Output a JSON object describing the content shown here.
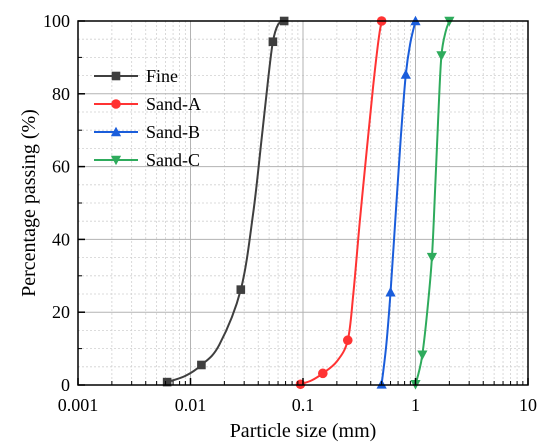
{
  "chart_data": {
    "type": "line",
    "title": "",
    "xlabel": "Particle size (mm)",
    "ylabel": "Percentage passing (%)",
    "xscale": "log",
    "xlim": [
      0.001,
      10
    ],
    "ylim": [
      0,
      100
    ],
    "x_tick_labels": [
      "0.001",
      "0.01",
      "0.1",
      "1",
      "10"
    ],
    "y_tick_labels": [
      "0",
      "20",
      "40",
      "60",
      "80",
      "100"
    ],
    "grid": true,
    "minor_grid": true,
    "legend_position": "top-left",
    "series": [
      {
        "name": "Fine",
        "color": "#3f3f3f",
        "marker": "square",
        "points": [
          [
            0.0062,
            0.8
          ],
          [
            0.0125,
            5.5
          ],
          [
            0.028,
            26.2
          ],
          [
            0.054,
            94.3
          ],
          [
            0.068,
            100
          ]
        ],
        "curve": [
          [
            0.0062,
            0.8
          ],
          [
            0.009,
            2.5
          ],
          [
            0.0125,
            5.5
          ],
          [
            0.018,
            11
          ],
          [
            0.028,
            26.2
          ],
          [
            0.036,
            47
          ],
          [
            0.043,
            68
          ],
          [
            0.049,
            84
          ],
          [
            0.054,
            94.3
          ],
          [
            0.06,
            99
          ],
          [
            0.068,
            100
          ]
        ]
      },
      {
        "name": "Sand-A",
        "color": "#ff3333",
        "marker": "circle",
        "points": [
          [
            0.095,
            0.2
          ],
          [
            0.15,
            3.2
          ],
          [
            0.25,
            12.3
          ],
          [
            0.5,
            100
          ]
        ],
        "curve": [
          [
            0.095,
            0.2
          ],
          [
            0.12,
            1.3
          ],
          [
            0.15,
            3.2
          ],
          [
            0.2,
            6.5
          ],
          [
            0.25,
            12.3
          ],
          [
            0.28,
            25
          ],
          [
            0.32,
            45
          ],
          [
            0.37,
            65
          ],
          [
            0.42,
            82
          ],
          [
            0.47,
            95
          ],
          [
            0.5,
            100
          ]
        ]
      },
      {
        "name": "Sand-B",
        "color": "#1a5ddb",
        "marker": "triangle-up",
        "points": [
          [
            0.5,
            0.2
          ],
          [
            0.6,
            25.5
          ],
          [
            0.82,
            85.3
          ],
          [
            1.0,
            100
          ]
        ],
        "curve": [
          [
            0.5,
            0.2
          ],
          [
            0.55,
            11
          ],
          [
            0.6,
            25.5
          ],
          [
            0.67,
            48
          ],
          [
            0.74,
            68
          ],
          [
            0.82,
            85.3
          ],
          [
            0.9,
            94
          ],
          [
            1.0,
            100
          ]
        ]
      },
      {
        "name": "Sand-C",
        "color": "#2eab5c",
        "marker": "triangle-down",
        "points": [
          [
            1.0,
            0.2
          ],
          [
            1.15,
            8.3
          ],
          [
            1.4,
            35.1
          ],
          [
            1.7,
            90.5
          ],
          [
            2.0,
            100
          ]
        ],
        "curve": [
          [
            1.0,
            0.2
          ],
          [
            1.07,
            3.5
          ],
          [
            1.15,
            8.3
          ],
          [
            1.27,
            20
          ],
          [
            1.4,
            35.1
          ],
          [
            1.5,
            55
          ],
          [
            1.6,
            75
          ],
          [
            1.7,
            90.5
          ],
          [
            1.85,
            97
          ],
          [
            2.0,
            100
          ]
        ]
      }
    ]
  }
}
